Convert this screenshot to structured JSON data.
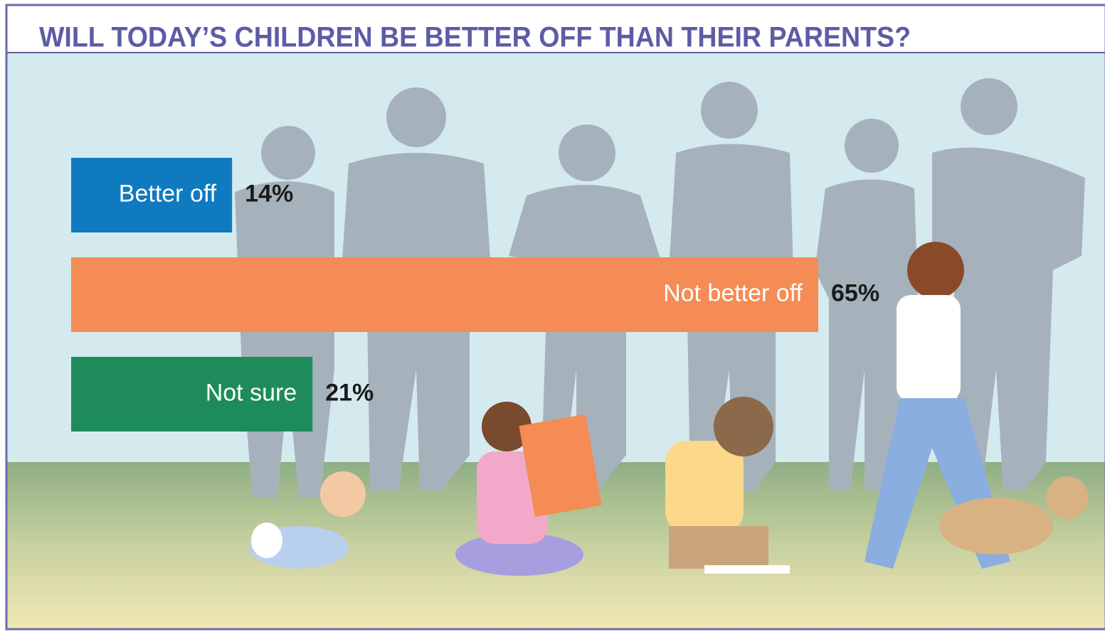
{
  "chart_data": {
    "type": "bar",
    "orientation": "horizontal",
    "title": "WILL TODAY’S CHILDREN BE BETTER OFF THAN THEIR PARENTS?",
    "categories": [
      "Better off",
      "Not better off",
      "Not sure"
    ],
    "values": [
      14,
      65,
      21
    ],
    "value_labels": [
      "14%",
      "65%",
      "21%"
    ],
    "colors": [
      "#0f7ac0",
      "#f58b55",
      "#1e8c5a"
    ]
  }
}
